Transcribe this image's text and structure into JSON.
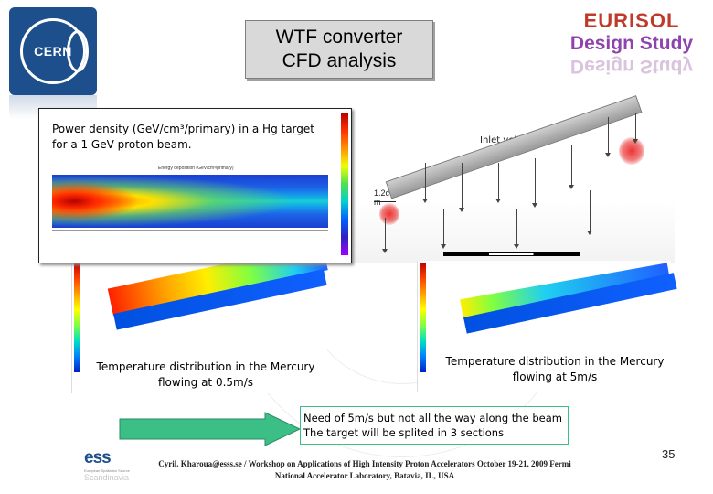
{
  "header": {
    "title_line1": "WTF converter",
    "title_line2": "CFD analysis",
    "logo_left": "CERN",
    "logo_right_line1": "EURISOL",
    "logo_right_line2": "Design Study"
  },
  "panels": {
    "power_density": {
      "caption": "Power density (GeV/cm³/primary) in a Hg target for a 1 GeV proton beam.",
      "plot_title": "Energy deposition (GeV/cm³/primary)"
    },
    "inlet": {
      "label": "Inlet velocity",
      "dimension_label_1": "1.2c",
      "dimension_label_2": "m"
    },
    "temperature_left": {
      "caption": "Temperature distribution in the Mercury flowing at 0.5m/s"
    },
    "temperature_right": {
      "caption": "Temperature distribution in the Mercury flowing at 5m/s"
    }
  },
  "note": {
    "line1": "Need of 5m/s but not all the way along the beam",
    "line2": "The target will be splited in 3 sections"
  },
  "footer": {
    "line1": "Cyril. Kharoua@esss.se / Workshop on Applications of High Intensity Proton Accelerators October 19-21, 2009 Fermi",
    "line2": "National Accelerator Laboratory, Batavia, IL, USA",
    "logo_text": "ess",
    "logo_subtext": "European Spallation Source",
    "logo_subtext2": "Scandinavia",
    "page_number": "35"
  },
  "colors": {
    "cern_blue": "#1d4f8c",
    "arrow_green": "#3cbf86",
    "title_box_bg": "#d9d9d9"
  }
}
